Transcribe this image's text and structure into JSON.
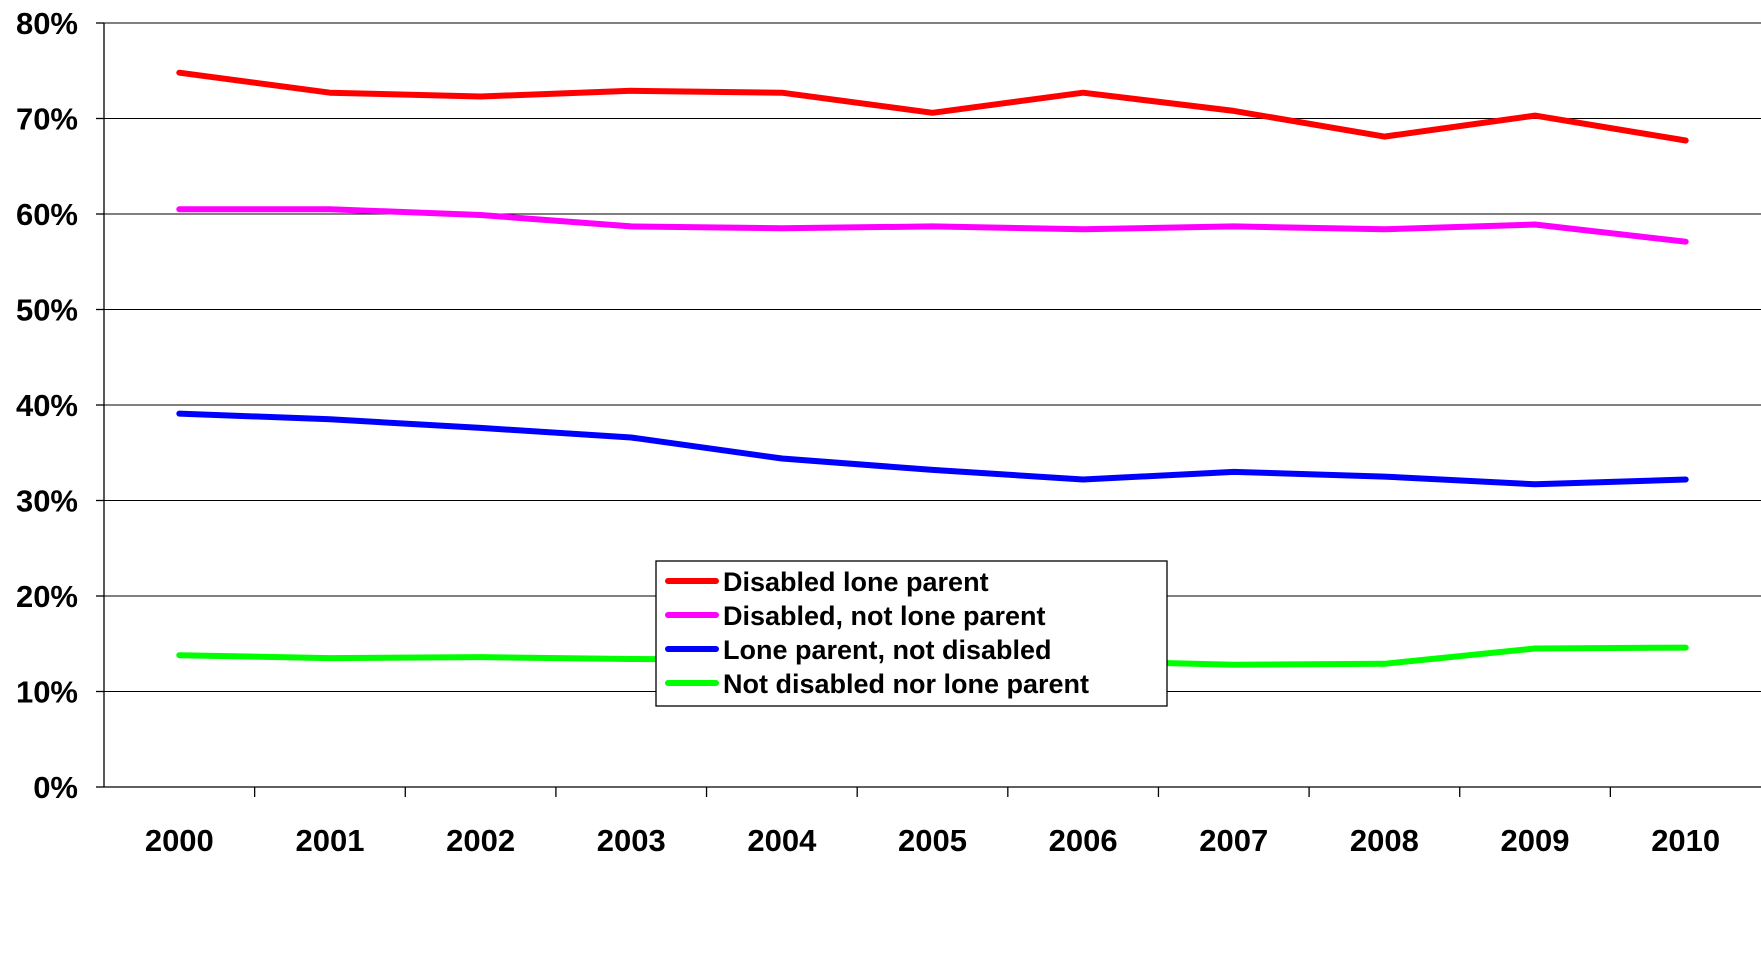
{
  "chart_data": {
    "type": "line",
    "title": "",
    "xlabel": "",
    "ylabel": "",
    "x": [
      "2000",
      "2001",
      "2002",
      "2003",
      "2004",
      "2005",
      "2006",
      "2007",
      "2008",
      "2009",
      "2010"
    ],
    "ylim": [
      0,
      80
    ],
    "y_ticks": [
      "0%",
      "10%",
      "20%",
      "30%",
      "40%",
      "50%",
      "60%",
      "70%",
      "80%"
    ],
    "y_tick_values": [
      0,
      10,
      20,
      30,
      40,
      50,
      60,
      70,
      80
    ],
    "grid": "horizontal",
    "legend_position": "center",
    "series": [
      {
        "name": "Disabled lone parent",
        "color": "#ff0000",
        "values": [
          74.8,
          72.7,
          72.3,
          72.9,
          72.7,
          70.6,
          72.7,
          70.8,
          68.1,
          70.3,
          67.7
        ]
      },
      {
        "name": "Disabled, not lone parent",
        "color": "#ff00ff",
        "values": [
          60.5,
          60.5,
          59.9,
          58.7,
          58.5,
          58.7,
          58.4,
          58.7,
          58.4,
          58.9,
          57.1
        ]
      },
      {
        "name": "Lone parent, not disabled",
        "color": "#0000ff",
        "values": [
          39.1,
          38.5,
          37.6,
          36.6,
          34.4,
          33.2,
          32.2,
          33.0,
          32.5,
          31.7,
          32.2
        ]
      },
      {
        "name": "Not disabled nor lone parent",
        "color": "#00ff00",
        "values": [
          13.8,
          13.5,
          13.6,
          13.4,
          13.3,
          13.1,
          13.2,
          12.8,
          12.9,
          14.5,
          14.6
        ]
      }
    ]
  }
}
